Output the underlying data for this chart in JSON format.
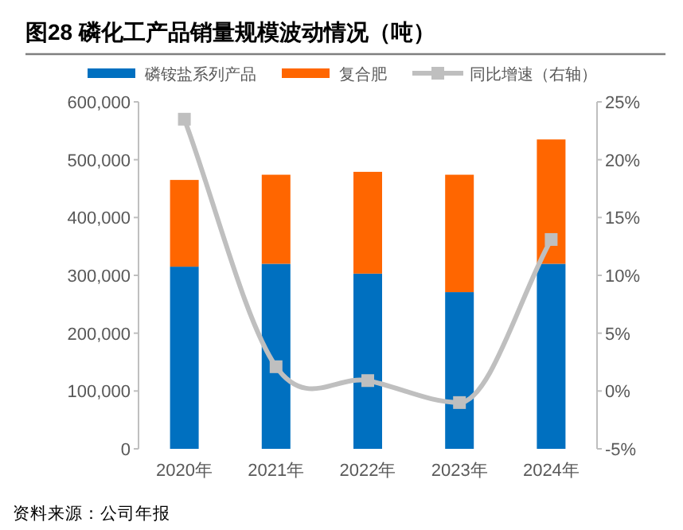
{
  "chart_data": {
    "type": "bar",
    "title": "图28 磷化工产品销量规模波动情况（吨）",
    "categories": [
      "2020年",
      "2021年",
      "2022年",
      "2023年",
      "2024年"
    ],
    "stacked": true,
    "series": [
      {
        "name": "磷铵盐系列产品",
        "color": "#0070c0",
        "values": [
          315000,
          320000,
          303000,
          271000,
          320000
        ]
      },
      {
        "name": "复合肥",
        "color": "#ff6600",
        "values": [
          150000,
          154000,
          176000,
          203000,
          215000
        ]
      },
      {
        "name": "同比增速（右轴）",
        "type": "line",
        "axis": "y2",
        "color": "#bfbfbf",
        "values": [
          23.5,
          2.1,
          0.9,
          -1.0,
          13.1
        ]
      }
    ],
    "ylim": [
      0,
      600000
    ],
    "yticks": [
      {
        "value": 0,
        "label": "0"
      },
      {
        "value": 100000,
        "label": "100,000"
      },
      {
        "value": 200000,
        "label": "200,000"
      },
      {
        "value": 300000,
        "label": "300,000"
      },
      {
        "value": 400000,
        "label": "400,000"
      },
      {
        "value": 500000,
        "label": "500,000"
      },
      {
        "value": 600000,
        "label": "600,000"
      }
    ],
    "y2lim": [
      -5,
      25
    ],
    "y2ticks": [
      {
        "value": -5,
        "label": "-5%"
      },
      {
        "value": 0,
        "label": "0%"
      },
      {
        "value": 5,
        "label": "5%"
      },
      {
        "value": 10,
        "label": "10%"
      },
      {
        "value": 15,
        "label": "15%"
      },
      {
        "value": 20,
        "label": "20%"
      },
      {
        "value": 25,
        "label": "25%"
      }
    ],
    "marker": "square",
    "grid": false,
    "legend": "top",
    "annotations": [
      "资料来源：公司年报"
    ]
  }
}
